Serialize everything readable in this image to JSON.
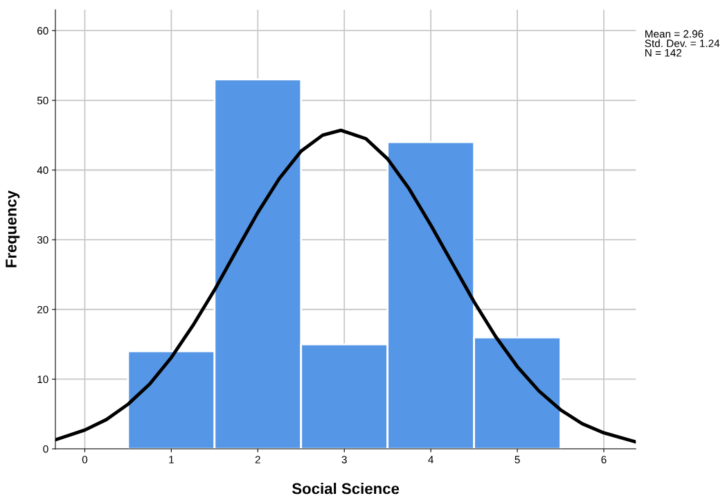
{
  "chart_data": {
    "type": "histogram",
    "xlabel": "Social Science",
    "ylabel": "Frequency",
    "bins": [
      0.5,
      1.5,
      2.5,
      3.5,
      4.5,
      5.5
    ],
    "values": [
      14,
      53,
      15,
      44,
      16
    ],
    "color": "#5596e6",
    "series": [
      {
        "type": "line",
        "color": "#000000",
        "x": [
          -0.34,
          0,
          0.25,
          0.5,
          0.75,
          1,
          1.25,
          1.5,
          1.75,
          2,
          2.25,
          2.5,
          2.75,
          2.96,
          3.25,
          3.5,
          3.75,
          4,
          4.25,
          4.5,
          4.75,
          5,
          5.25,
          5.5,
          5.75,
          6,
          6.37
        ],
        "values": [
          1.3,
          2.7,
          4.2,
          6.4,
          9.3,
          13.1,
          17.7,
          22.8,
          28.4,
          33.9,
          38.8,
          42.7,
          45.0,
          45.7,
          44.5,
          41.6,
          37.3,
          32.1,
          26.6,
          21.1,
          16.1,
          11.8,
          8.3,
          5.6,
          3.6,
          2.3,
          1.0
        ]
      }
    ],
    "xlim": [
      -0.34,
      6.37
    ],
    "xticks": [
      0,
      1,
      2,
      3,
      4,
      5,
      6
    ],
    "ylim": [
      0,
      63
    ],
    "yticks": [
      0,
      10,
      20,
      30,
      40,
      50,
      60
    ],
    "grid": true,
    "annotations": [
      "Mean = 2.96",
      "Std. Dev. = 1.24",
      "N = 142"
    ]
  }
}
